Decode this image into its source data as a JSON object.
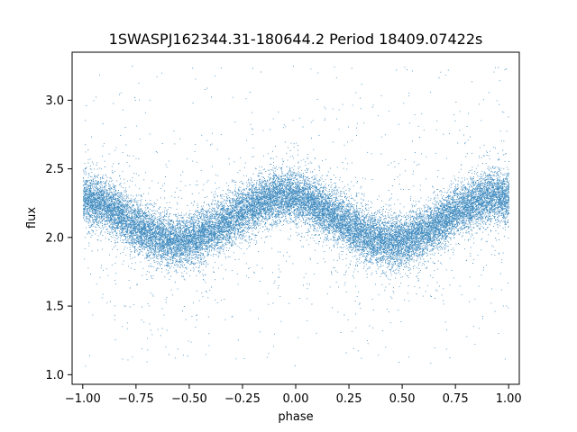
{
  "chart_data": {
    "type": "scatter",
    "title": "1SWASPJ162344.31-180644.2 Period 18409.07422s",
    "xlabel": "phase",
    "ylabel": "flux",
    "xlim": [
      -1.05,
      1.05
    ],
    "ylim": [
      0.93,
      3.35
    ],
    "x_ticks": [
      -1.0,
      -0.75,
      -0.5,
      -0.25,
      0.0,
      0.25,
      0.5,
      0.75,
      1.0
    ],
    "x_tick_labels": [
      "−1.00",
      "−0.75",
      "−0.50",
      "−0.25",
      "0.00",
      "0.25",
      "0.50",
      "0.75",
      "1.00"
    ],
    "y_ticks": [
      1.0,
      1.5,
      2.0,
      2.5,
      3.0
    ],
    "y_tick_labels": [
      "1.0",
      "1.5",
      "2.0",
      "2.5",
      "3.0"
    ],
    "grid": false,
    "legend": "none",
    "point_color": "#1f77b4",
    "series": [
      {
        "phase_range": [
          -1.0,
          1.0
        ],
        "mean_flux": 2.135,
        "amplitude": 0.165,
        "max_phase": -0.05,
        "min_phase": 0.45,
        "core_scatter": 0.09,
        "outlier_range": [
          1.05,
          3.25
        ]
      }
    ]
  }
}
